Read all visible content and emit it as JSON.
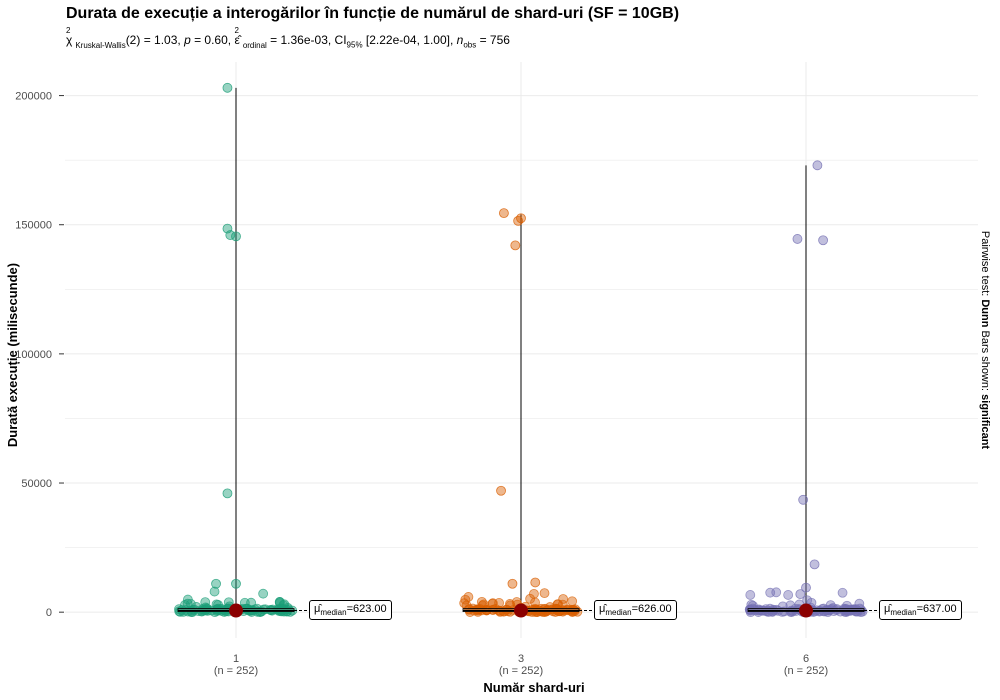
{
  "title": "Durata de execuție a interogărilor în funcție de numărul de shard-uri (SF = 10GB)",
  "subtitle": {
    "chi_label": "χ",
    "chi_sup": "2",
    "chi_sub": "Kruskal-Wallis",
    "chi_value": "(2) = 1.03, ",
    "p_label": "p",
    "p_value": " = 0.60, ",
    "eps_label": "ε̂",
    "eps_sup": "2",
    "eps_sub": "ordinal",
    "eps_value": " = 1.36e-03, CI",
    "ci_sub": "95%",
    "ci_value": " [2.22e-04, 1.00], ",
    "n_label": "n",
    "n_sub": "obs",
    "n_value": " = 756"
  },
  "caption": {
    "prefix": "Pairwise test: ",
    "test": "Dunn",
    "middle": " Bars shown: ",
    "shown": "significant"
  },
  "colors": {
    "group1": "#1b9e77",
    "group2": "#d95f02",
    "group3": "#7570b3",
    "median_point": "#8b0000",
    "grid": "#ebebeb"
  },
  "chart_data": {
    "type": "scatter",
    "xlabel": "Număr shard-uri",
    "ylabel": "Durată execuție (milisecunde)",
    "ylim": [
      -10000,
      213000
    ],
    "yticks": [
      0,
      50000,
      100000,
      150000,
      200000
    ],
    "ytick_labels": [
      "0",
      "50000",
      "100000",
      "150000",
      "200000"
    ],
    "grid": true,
    "categories": [
      "1",
      "3",
      "6"
    ],
    "category_counts": [
      "(n = 252)",
      "(n = 252)",
      "(n = 252)"
    ],
    "medians": [
      623.0,
      626.0,
      637.0
    ],
    "median_labels": [
      "623.00",
      "626.00",
      "637.00"
    ],
    "median_label_prefix": "μ",
    "median_label_sub": "median",
    "whisker_max": [
      203000,
      154000,
      173000
    ],
    "series": [
      {
        "group": "1",
        "outliers": [
          {
            "x": -0.03,
            "y": 203000
          },
          {
            "x": -0.03,
            "y": 148500
          },
          {
            "x": -0.02,
            "y": 146000
          },
          {
            "x": 0.0,
            "y": 145500
          },
          {
            "x": -0.03,
            "y": 46000
          },
          {
            "x": -0.07,
            "y": 11000
          },
          {
            "x": 0.0,
            "y": 11000
          }
        ]
      },
      {
        "group": "3",
        "outliers": [
          {
            "x": -0.06,
            "y": 154500
          },
          {
            "x": 0.0,
            "y": 152500
          },
          {
            "x": -0.01,
            "y": 151500
          },
          {
            "x": -0.02,
            "y": 142000
          },
          {
            "x": -0.07,
            "y": 47000
          },
          {
            "x": 0.05,
            "y": 11500
          },
          {
            "x": -0.03,
            "y": 11000
          }
        ]
      },
      {
        "group": "6",
        "outliers": [
          {
            "x": 0.04,
            "y": 173000
          },
          {
            "x": -0.03,
            "y": 144500
          },
          {
            "x": 0.06,
            "y": 144000
          },
          {
            "x": -0.01,
            "y": 43500
          },
          {
            "x": 0.03,
            "y": 18500
          },
          {
            "x": 0.0,
            "y": 9500
          },
          {
            "x": -0.02,
            "y": 7000
          }
        ]
      }
    ]
  }
}
